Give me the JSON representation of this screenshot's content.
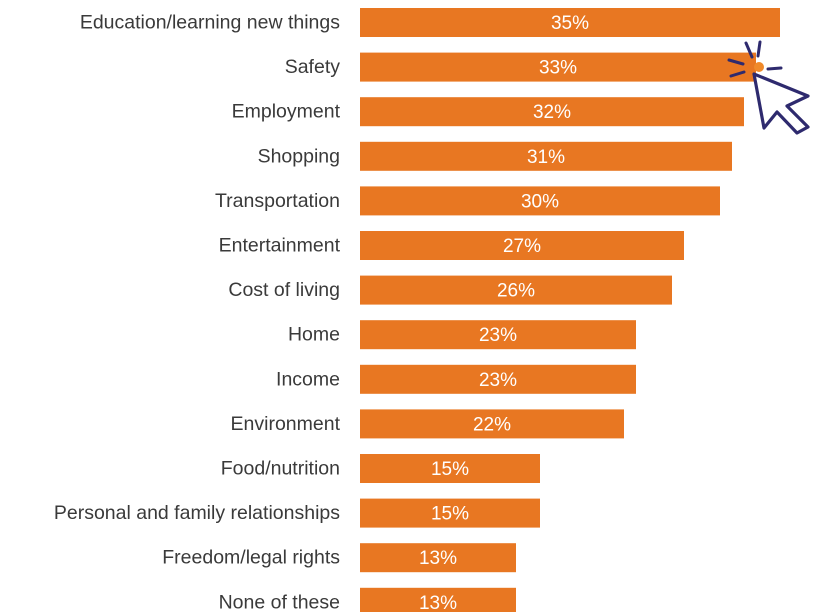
{
  "chart_data": {
    "type": "bar",
    "orientation": "horizontal",
    "categories": [
      "Education/learning new things",
      "Safety",
      "Employment",
      "Shopping",
      "Transportation",
      "Entertainment",
      "Cost of living",
      "Home",
      "Income",
      "Environment",
      "Food/nutrition",
      "Personal and family relationships",
      "Freedom/legal rights",
      "None of these"
    ],
    "values": [
      35,
      33,
      32,
      31,
      30,
      27,
      26,
      23,
      23,
      22,
      15,
      15,
      13,
      13
    ],
    "value_labels": [
      "35%",
      "33%",
      "32%",
      "31%",
      "30%",
      "27%",
      "26%",
      "23%",
      "23%",
      "22%",
      "15%",
      "15%",
      "13%",
      "13%"
    ],
    "title": "",
    "xlabel": "",
    "ylabel": "",
    "bar_color": "#E87722",
    "label_color": "#3a3a3a",
    "value_label_color": "#ffffff",
    "grid": false,
    "legend": "none"
  },
  "overlay": {
    "icon": "cursor-click-icon",
    "color": "#2E2A6E",
    "target_category": "Safety"
  }
}
